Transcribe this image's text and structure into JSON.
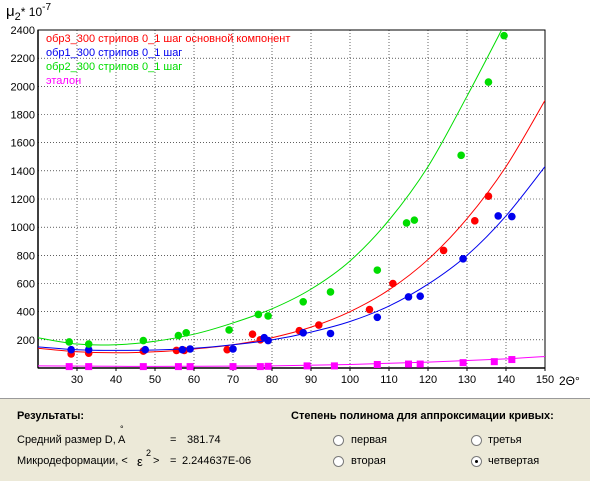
{
  "chart_data": {
    "type": "scatter",
    "ylabel_base": "μ",
    "ylabel_sub": "2",
    "ylabel_exp": "* 10",
    "ylabel_pow": "-7",
    "xlabel": "2Θ°",
    "xlim": [
      20,
      150
    ],
    "ylim": [
      0,
      2400
    ],
    "xticks": [
      30,
      40,
      50,
      60,
      70,
      80,
      90,
      100,
      110,
      120,
      130,
      140,
      150
    ],
    "yticks": [
      200,
      400,
      600,
      800,
      1000,
      1200,
      1400,
      1600,
      1800,
      2000,
      2200,
      2400
    ],
    "grid": true,
    "legend_position": "top-left",
    "series": [
      {
        "name": "обр3_300 стрипов 0_1 шаг основной компонент",
        "color": "#ff0000",
        "points": [
          [
            28.5,
            100
          ],
          [
            33,
            105
          ],
          [
            47,
            120
          ],
          [
            55.5,
            125
          ],
          [
            57.5,
            125
          ],
          [
            68.5,
            130
          ],
          [
            75,
            240
          ],
          [
            77,
            200
          ],
          [
            87,
            265
          ],
          [
            92,
            305
          ],
          [
            105,
            415
          ],
          [
            111,
            600
          ],
          [
            124,
            835
          ],
          [
            132,
            1045
          ],
          [
            135.5,
            1220
          ]
        ],
        "curve": [
          [
            20,
            140
          ],
          [
            30,
            115
          ],
          [
            40,
            108
          ],
          [
            50,
            115
          ],
          [
            60,
            135
          ],
          [
            70,
            165
          ],
          [
            80,
            215
          ],
          [
            90,
            290
          ],
          [
            100,
            400
          ],
          [
            110,
            555
          ],
          [
            120,
            770
          ],
          [
            130,
            1060
          ],
          [
            140,
            1430
          ],
          [
            150,
            1900
          ]
        ]
      },
      {
        "name": "обр1_300 стрипов 0_1 шаг",
        "color": "#0000ee",
        "points": [
          [
            28.5,
            130
          ],
          [
            33,
            130
          ],
          [
            47.5,
            130
          ],
          [
            57,
            130
          ],
          [
            59,
            135
          ],
          [
            70,
            135
          ],
          [
            78,
            215
          ],
          [
            79,
            195
          ],
          [
            88,
            250
          ],
          [
            95,
            245
          ],
          [
            107,
            360
          ],
          [
            115,
            505
          ],
          [
            118,
            510
          ],
          [
            129,
            775
          ],
          [
            138,
            1080
          ],
          [
            141.5,
            1075
          ]
        ],
        "curve": [
          [
            20,
            150
          ],
          [
            30,
            130
          ],
          [
            40,
            125
          ],
          [
            50,
            128
          ],
          [
            60,
            140
          ],
          [
            70,
            165
          ],
          [
            80,
            200
          ],
          [
            90,
            255
          ],
          [
            100,
            330
          ],
          [
            110,
            440
          ],
          [
            120,
            595
          ],
          [
            130,
            800
          ],
          [
            140,
            1080
          ],
          [
            150,
            1430
          ]
        ]
      },
      {
        "name": "обр2_300 стрипов 0_1 шаг",
        "color": "#00dd00",
        "points": [
          [
            28,
            185
          ],
          [
            33,
            170
          ],
          [
            47,
            195
          ],
          [
            56,
            230
          ],
          [
            58,
            250
          ],
          [
            69,
            270
          ],
          [
            76.5,
            380
          ],
          [
            79,
            370
          ],
          [
            88,
            470
          ],
          [
            95,
            540
          ],
          [
            107,
            695
          ],
          [
            114.5,
            1030
          ],
          [
            116.5,
            1050
          ],
          [
            128.5,
            1510
          ],
          [
            135.5,
            2030
          ],
          [
            139.5,
            2360
          ]
        ],
        "curve": [
          [
            20,
            215
          ],
          [
            30,
            170
          ],
          [
            40,
            165
          ],
          [
            50,
            190
          ],
          [
            60,
            240
          ],
          [
            70,
            320
          ],
          [
            80,
            420
          ],
          [
            90,
            560
          ],
          [
            100,
            760
          ],
          [
            110,
            1050
          ],
          [
            120,
            1430
          ],
          [
            130,
            1930
          ],
          [
            140,
            2460
          ]
        ]
      },
      {
        "name": "эталон",
        "color": "#ff00ff",
        "points": [
          [
            28,
            10
          ],
          [
            33,
            10
          ],
          [
            47,
            10
          ],
          [
            56,
            10
          ],
          [
            59,
            10
          ],
          [
            70,
            10
          ],
          [
            77,
            10
          ],
          [
            79,
            12
          ],
          [
            89,
            15
          ],
          [
            96,
            15
          ],
          [
            107,
            25
          ],
          [
            115,
            28
          ],
          [
            118,
            28
          ],
          [
            129,
            38
          ],
          [
            137,
            45
          ],
          [
            141.5,
            60
          ]
        ],
        "curve": [
          [
            20,
            15
          ],
          [
            40,
            12
          ],
          [
            60,
            12
          ],
          [
            80,
            15
          ],
          [
            100,
            25
          ],
          [
            120,
            42
          ],
          [
            140,
            65
          ],
          [
            150,
            82
          ]
        ]
      }
    ]
  },
  "results": {
    "title": "Результаты:",
    "size_label": "Средний размер D,",
    "size_unit": "A",
    "size_unit_mark": "°",
    "size_eq": "=",
    "size_value": "381.74",
    "strain_label": "Микродеформации, <",
    "strain_symbol": "ε",
    "strain_pow": "2",
    "strain_close": ">",
    "strain_eq": "=",
    "strain_value": "2.244637E-06"
  },
  "polynomial": {
    "title": "Степень полинома для аппроксимации кривых:",
    "options": [
      {
        "label": "первая",
        "checked": false
      },
      {
        "label": "вторая",
        "checked": false
      },
      {
        "label": "третья",
        "checked": false
      },
      {
        "label": "четвертая",
        "checked": true
      }
    ]
  }
}
